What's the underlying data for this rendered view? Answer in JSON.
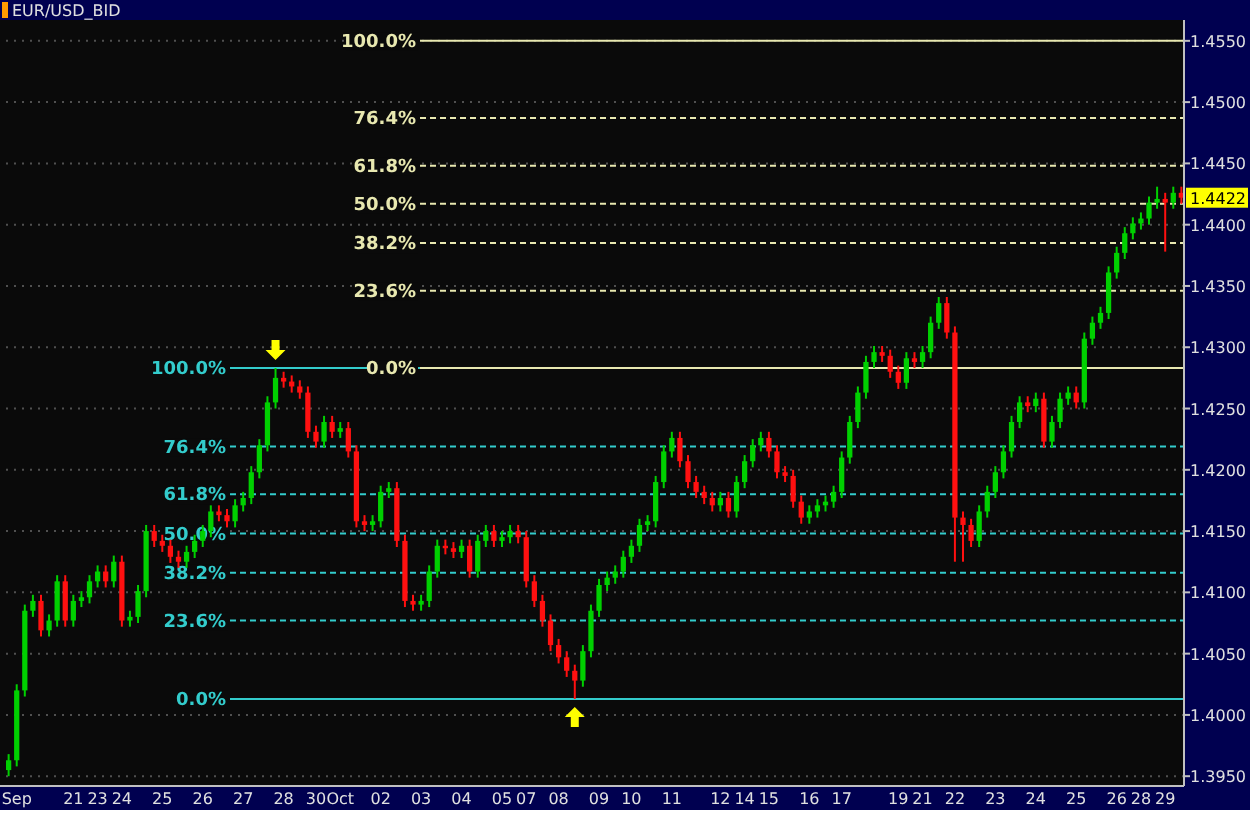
{
  "chart_data": {
    "type": "candlestick",
    "title": "EUR/USD_BID",
    "categories": [
      null,
      "Sep",
      null,
      null,
      null,
      null,
      null,
      null,
      "21",
      null,
      null,
      "23",
      null,
      null,
      "24",
      null,
      null,
      null,
      null,
      "25",
      null,
      null,
      null,
      null,
      "26",
      null,
      null,
      null,
      null,
      "27",
      null,
      null,
      null,
      null,
      "28",
      null,
      null,
      null,
      "30",
      null,
      null,
      "Oct",
      null,
      null,
      null,
      null,
      "02",
      null,
      null,
      null,
      null,
      "03",
      null,
      null,
      null,
      null,
      "04",
      null,
      null,
      null,
      null,
      "05",
      null,
      null,
      "07",
      null,
      null,
      null,
      "08",
      null,
      null,
      null,
      null,
      "09",
      null,
      null,
      null,
      "10",
      null,
      null,
      null,
      null,
      "11",
      null,
      null,
      null,
      null,
      null,
      "12",
      null,
      null,
      "14",
      null,
      null,
      "15",
      null,
      null,
      null,
      null,
      "16",
      null,
      null,
      null,
      "17",
      null,
      null,
      null,
      null,
      null,
      null,
      "19",
      null,
      null,
      "21",
      null,
      null,
      null,
      "22",
      null,
      null,
      null,
      null,
      "23",
      null,
      null,
      null,
      null,
      "24",
      null,
      null,
      null,
      null,
      "25",
      null,
      null,
      null,
      null,
      "26",
      null,
      null,
      "28",
      null,
      null,
      "29",
      null,
      null
    ],
    "ohlc": [
      [
        1.3955,
        1.3968,
        1.395,
        1.3963
      ],
      [
        1.3963,
        1.4025,
        1.3958,
        1.402
      ],
      [
        1.402,
        1.409,
        1.4015,
        1.4085
      ],
      [
        1.4085,
        1.4098,
        1.408,
        1.4093
      ],
      [
        1.4093,
        1.4098,
        1.4064,
        1.4069
      ],
      [
        1.4069,
        1.4082,
        1.4064,
        1.4077
      ],
      [
        1.4077,
        1.4114,
        1.4072,
        1.4109
      ],
      [
        1.4109,
        1.4114,
        1.4072,
        1.4077
      ],
      [
        1.4077,
        1.4098,
        1.4072,
        1.4093
      ],
      [
        1.4093,
        1.4101,
        1.4088,
        1.4096
      ],
      [
        1.4096,
        1.4114,
        1.4091,
        1.4109
      ],
      [
        1.4109,
        1.4122,
        1.4104,
        1.4117
      ],
      [
        1.4117,
        1.4122,
        1.4104,
        1.4109
      ],
      [
        1.4109,
        1.413,
        1.4104,
        1.4125
      ],
      [
        1.4125,
        1.413,
        1.4072,
        1.4077
      ],
      [
        1.4077,
        1.4085,
        1.4072,
        1.408
      ],
      [
        1.408,
        1.4106,
        1.4075,
        1.4101
      ],
      [
        1.4101,
        1.4155,
        1.4096,
        1.415
      ],
      [
        1.415,
        1.4155,
        1.4137,
        1.4142
      ],
      [
        1.4142,
        1.4147,
        1.4133,
        1.4138
      ],
      [
        1.4138,
        1.4143,
        1.4124,
        1.4129
      ],
      [
        1.4129,
        1.4134,
        1.412,
        1.4125
      ],
      [
        1.4125,
        1.4138,
        1.412,
        1.4133
      ],
      [
        1.4133,
        1.4147,
        1.4128,
        1.4142
      ],
      [
        1.4142,
        1.4155,
        1.4137,
        1.415
      ],
      [
        1.415,
        1.4171,
        1.4145,
        1.4166
      ],
      [
        1.4166,
        1.4171,
        1.4158,
        1.4163
      ],
      [
        1.4163,
        1.4168,
        1.4153,
        1.4158
      ],
      [
        1.4158,
        1.4176,
        1.4153,
        1.4171
      ],
      [
        1.4171,
        1.4182,
        1.4166,
        1.4177
      ],
      [
        1.4177,
        1.4203,
        1.4172,
        1.4198
      ],
      [
        1.4198,
        1.4225,
        1.4193,
        1.422
      ],
      [
        1.422,
        1.426,
        1.4215,
        1.4255
      ],
      [
        1.4255,
        1.4283,
        1.425,
        1.4275
      ],
      [
        1.4275,
        1.428,
        1.4267,
        1.4272
      ],
      [
        1.4272,
        1.4277,
        1.4263,
        1.4268
      ],
      [
        1.4268,
        1.4273,
        1.4258,
        1.4263
      ],
      [
        1.4263,
        1.4268,
        1.4226,
        1.4231
      ],
      [
        1.4231,
        1.4236,
        1.4218,
        1.4223
      ],
      [
        1.4223,
        1.4244,
        1.4218,
        1.4239
      ],
      [
        1.4239,
        1.4244,
        1.4226,
        1.4231
      ],
      [
        1.4231,
        1.4239,
        1.4226,
        1.4234
      ],
      [
        1.4234,
        1.4239,
        1.421,
        1.4215
      ],
      [
        1.4215,
        1.422,
        1.4153,
        1.4158
      ],
      [
        1.4158,
        1.4163,
        1.415,
        1.4155
      ],
      [
        1.4155,
        1.4163,
        1.415,
        1.4158
      ],
      [
        1.4158,
        1.4187,
        1.4153,
        1.4182
      ],
      [
        1.4182,
        1.419,
        1.4177,
        1.4185
      ],
      [
        1.4185,
        1.419,
        1.4137,
        1.4142
      ],
      [
        1.4142,
        1.4147,
        1.4088,
        1.4093
      ],
      [
        1.4093,
        1.4098,
        1.4085,
        1.409
      ],
      [
        1.409,
        1.4098,
        1.4085,
        1.4093
      ],
      [
        1.4093,
        1.4122,
        1.4088,
        1.4117
      ],
      [
        1.4117,
        1.4143,
        1.4112,
        1.4138
      ],
      [
        1.4138,
        1.4143,
        1.4131,
        1.4136
      ],
      [
        1.4136,
        1.4141,
        1.4128,
        1.4133
      ],
      [
        1.4133,
        1.4143,
        1.4128,
        1.4138
      ],
      [
        1.4138,
        1.4143,
        1.4112,
        1.4117
      ],
      [
        1.4117,
        1.4147,
        1.4112,
        1.4142
      ],
      [
        1.4142,
        1.4155,
        1.4137,
        1.415
      ],
      [
        1.415,
        1.4155,
        1.4137,
        1.4142
      ],
      [
        1.4142,
        1.415,
        1.4137,
        1.4145
      ],
      [
        1.4145,
        1.4155,
        1.414,
        1.415
      ],
      [
        1.415,
        1.4155,
        1.414,
        1.4145
      ],
      [
        1.4145,
        1.415,
        1.4104,
        1.4109
      ],
      [
        1.4109,
        1.4114,
        1.4088,
        1.4093
      ],
      [
        1.4093,
        1.4098,
        1.4072,
        1.4077
      ],
      [
        1.4077,
        1.4082,
        1.4052,
        1.4057
      ],
      [
        1.4057,
        1.4062,
        1.4042,
        1.4047
      ],
      [
        1.4047,
        1.4052,
        1.4031,
        1.4036
      ],
      [
        1.4036,
        1.4041,
        1.4013,
        1.4028
      ],
      [
        1.4028,
        1.4057,
        1.4023,
        1.4052
      ],
      [
        1.4052,
        1.409,
        1.4047,
        1.4085
      ],
      [
        1.4085,
        1.4111,
        1.408,
        1.4106
      ],
      [
        1.4106,
        1.4117,
        1.4101,
        1.4112
      ],
      [
        1.4112,
        1.4122,
        1.4107,
        1.4117
      ],
      [
        1.4117,
        1.4134,
        1.4112,
        1.4129
      ],
      [
        1.4129,
        1.4143,
        1.4124,
        1.4138
      ],
      [
        1.4138,
        1.416,
        1.4133,
        1.4155
      ],
      [
        1.4155,
        1.4163,
        1.415,
        1.4158
      ],
      [
        1.4158,
        1.4195,
        1.4153,
        1.419
      ],
      [
        1.419,
        1.422,
        1.4185,
        1.4215
      ],
      [
        1.4215,
        1.4231,
        1.421,
        1.4226
      ],
      [
        1.4226,
        1.4231,
        1.4202,
        1.4207
      ],
      [
        1.4207,
        1.4212,
        1.4185,
        1.419
      ],
      [
        1.419,
        1.4195,
        1.4177,
        1.4182
      ],
      [
        1.4182,
        1.4187,
        1.4172,
        1.4177
      ],
      [
        1.4177,
        1.4182,
        1.4166,
        1.4171
      ],
      [
        1.4171,
        1.4182,
        1.4166,
        1.4177
      ],
      [
        1.4177,
        1.4182,
        1.4161,
        1.4166
      ],
      [
        1.4166,
        1.4195,
        1.4161,
        1.419
      ],
      [
        1.419,
        1.4212,
        1.4185,
        1.4207
      ],
      [
        1.4207,
        1.4225,
        1.4202,
        1.422
      ],
      [
        1.422,
        1.4231,
        1.4215,
        1.4226
      ],
      [
        1.4226,
        1.4231,
        1.421,
        1.4215
      ],
      [
        1.4215,
        1.422,
        1.4193,
        1.4198
      ],
      [
        1.4198,
        1.4203,
        1.419,
        1.4195
      ],
      [
        1.4195,
        1.42,
        1.4169,
        1.4174
      ],
      [
        1.4174,
        1.4179,
        1.4156,
        1.4161
      ],
      [
        1.4161,
        1.4171,
        1.4156,
        1.4166
      ],
      [
        1.4166,
        1.4176,
        1.4161,
        1.4171
      ],
      [
        1.4171,
        1.4179,
        1.4166,
        1.4174
      ],
      [
        1.4174,
        1.4187,
        1.4169,
        1.4182
      ],
      [
        1.4182,
        1.4215,
        1.4177,
        1.421
      ],
      [
        1.421,
        1.4244,
        1.4205,
        1.4239
      ],
      [
        1.4239,
        1.4268,
        1.4234,
        1.4263
      ],
      [
        1.4263,
        1.4293,
        1.4258,
        1.4288
      ],
      [
        1.4288,
        1.4301,
        1.4283,
        1.4296
      ],
      [
        1.4296,
        1.4301,
        1.4288,
        1.4293
      ],
      [
        1.4293,
        1.4298,
        1.4275,
        1.428
      ],
      [
        1.428,
        1.4285,
        1.4266,
        1.4271
      ],
      [
        1.4271,
        1.4296,
        1.4266,
        1.4291
      ],
      [
        1.4291,
        1.4296,
        1.4283,
        1.4288
      ],
      [
        1.4288,
        1.4301,
        1.4283,
        1.4296
      ],
      [
        1.4296,
        1.4325,
        1.4291,
        1.432
      ],
      [
        1.432,
        1.4341,
        1.4315,
        1.4336
      ],
      [
        1.4336,
        1.4341,
        1.4307,
        1.4312
      ],
      [
        1.4312,
        1.4317,
        1.4125,
        1.4161
      ],
      [
        1.4161,
        1.4166,
        1.4125,
        1.4155
      ],
      [
        1.4155,
        1.416,
        1.4137,
        1.4142
      ],
      [
        1.4142,
        1.4171,
        1.4137,
        1.4166
      ],
      [
        1.4166,
        1.4187,
        1.4161,
        1.4182
      ],
      [
        1.4182,
        1.4203,
        1.4177,
        1.4198
      ],
      [
        1.4198,
        1.422,
        1.4193,
        1.4215
      ],
      [
        1.4215,
        1.4244,
        1.421,
        1.4239
      ],
      [
        1.4239,
        1.426,
        1.4234,
        1.4255
      ],
      [
        1.4255,
        1.426,
        1.4247,
        1.4252
      ],
      [
        1.4252,
        1.4263,
        1.4247,
        1.4258
      ],
      [
        1.4258,
        1.4263,
        1.4218,
        1.4223
      ],
      [
        1.4223,
        1.4244,
        1.4218,
        1.4239
      ],
      [
        1.4239,
        1.4263,
        1.4234,
        1.4258
      ],
      [
        1.4258,
        1.4268,
        1.4253,
        1.4263
      ],
      [
        1.4263,
        1.4268,
        1.425,
        1.4255
      ],
      [
        1.4255,
        1.4312,
        1.425,
        1.4307
      ],
      [
        1.4307,
        1.4325,
        1.4302,
        1.432
      ],
      [
        1.432,
        1.4333,
        1.4315,
        1.4328
      ],
      [
        1.4328,
        1.4366,
        1.4323,
        1.4361
      ],
      [
        1.4361,
        1.4382,
        1.4356,
        1.4377
      ],
      [
        1.4377,
        1.4398,
        1.4372,
        1.4393
      ],
      [
        1.4393,
        1.4406,
        1.4388,
        1.4401
      ],
      [
        1.4401,
        1.441,
        1.4396,
        1.4405
      ],
      [
        1.4405,
        1.4423,
        1.44,
        1.4418
      ],
      [
        1.4418,
        1.4431,
        1.4413,
        1.4421
      ],
      [
        1.4421,
        1.4426,
        1.4378,
        1.4418
      ],
      [
        1.4418,
        1.4431,
        1.4413,
        1.4426
      ],
      [
        1.4426,
        1.4431,
        1.4417,
        1.4422
      ]
    ],
    "ylim": [
      1.3942,
      1.4567
    ],
    "yticks": [
      {
        "value": 1.395,
        "label": "1.3950"
      },
      {
        "value": 1.4,
        "label": "1.4000"
      },
      {
        "value": 1.405,
        "label": "1.4050"
      },
      {
        "value": 1.41,
        "label": "1.4100"
      },
      {
        "value": 1.415,
        "label": "1.4150"
      },
      {
        "value": 1.42,
        "label": "1.4200"
      },
      {
        "value": 1.425,
        "label": "1.4250"
      },
      {
        "value": 1.43,
        "label": "1.4300"
      },
      {
        "value": 1.435,
        "label": "1.4350"
      },
      {
        "value": 1.44,
        "label": "1.4400"
      },
      {
        "value": 1.445,
        "label": "1.4450"
      },
      {
        "value": 1.45,
        "label": "1.4500"
      },
      {
        "value": 1.455,
        "label": "1.4550"
      }
    ],
    "grid": "y",
    "ref_lines": [
      {
        "axis": "y",
        "value": 1.455,
        "color": "#e8e8b0",
        "line_style": "solid"
      },
      {
        "axis": "y",
        "value": 1.4487,
        "color": "#e8e8b0",
        "line_style": "dashed"
      },
      {
        "axis": "y",
        "value": 1.4448,
        "color": "#e8e8b0",
        "line_style": "dashed"
      },
      {
        "axis": "y",
        "value": 1.4417,
        "color": "#e8e8b0",
        "line_style": "dashed"
      },
      {
        "axis": "y",
        "value": 1.4385,
        "color": "#e8e8b0",
        "line_style": "dashed"
      },
      {
        "axis": "y",
        "value": 1.4346,
        "color": "#e8e8b0",
        "line_style": "dashed"
      },
      {
        "axis": "y",
        "value": 1.4283,
        "color": "#e8e8b0",
        "line_style": "solid"
      },
      {
        "axis": "y",
        "value": 1.4283,
        "color": "#33cccc",
        "line_style": "solid"
      },
      {
        "axis": "y",
        "value": 1.4219,
        "color": "#33cccc",
        "line_style": "dashed"
      },
      {
        "axis": "y",
        "value": 1.418,
        "color": "#33cccc",
        "line_style": "dashed"
      },
      {
        "axis": "y",
        "value": 1.4148,
        "color": "#33cccc",
        "line_style": "dashed"
      },
      {
        "axis": "y",
        "value": 1.4116,
        "color": "#33cccc",
        "line_style": "dashed"
      },
      {
        "axis": "y",
        "value": 1.4077,
        "color": "#33cccc",
        "line_style": "dashed"
      },
      {
        "axis": "y",
        "value": 1.4013,
        "color": "#33cccc",
        "line_style": "solid"
      }
    ],
    "annotations": [
      "100.0%",
      "76.4%",
      "61.8%",
      "50.0%",
      "38.2%",
      "23.6%",
      "0.0%",
      "100.0%",
      "76.4%",
      "61.8%",
      "50.0%",
      "38.2%",
      "23.6%",
      "0.0%",
      {
        "text": "1.4422",
        "y": 1.4422
      }
    ]
  }
}
